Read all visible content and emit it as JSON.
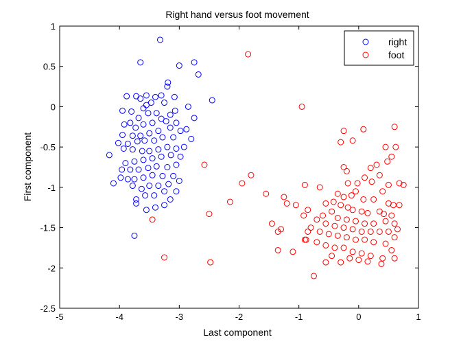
{
  "chart_data": {
    "type": "scatter",
    "title": "Right hand versus foot movement",
    "xlabel": "Last component",
    "ylabel": "First component",
    "xlim": [
      -5,
      1
    ],
    "ylim": [
      -2.5,
      1
    ],
    "xticks": [
      "-5",
      "-4",
      "-3",
      "-2",
      "-1",
      "0",
      "1"
    ],
    "yticks": [
      "-2.5",
      "-2",
      "-1.5",
      "-1",
      "-0.5",
      "0",
      "0.5",
      "1"
    ],
    "xtick_values": [
      -5,
      -4,
      -3,
      -2,
      -1,
      0,
      1
    ],
    "ytick_values": [
      -2.5,
      -2,
      -1.5,
      -1,
      -0.5,
      0,
      0.5,
      1
    ],
    "grid": false,
    "legend_position": "top-right",
    "marker": "open-circle",
    "series": [
      {
        "name": "right",
        "color": "#0000ff",
        "points": [
          [
            -3.32,
            0.83
          ],
          [
            -3.65,
            0.55
          ],
          [
            -3.0,
            0.51
          ],
          [
            -2.75,
            0.55
          ],
          [
            -2.68,
            0.4
          ],
          [
            -3.19,
            0.3
          ],
          [
            -3.2,
            0.25
          ],
          [
            -2.45,
            0.08
          ],
          [
            -3.88,
            0.13
          ],
          [
            -3.72,
            0.13
          ],
          [
            -3.55,
            0.14
          ],
          [
            -3.4,
            0.12
          ],
          [
            -3.3,
            0.14
          ],
          [
            -3.08,
            0.12
          ],
          [
            -3.25,
            0.05
          ],
          [
            -3.47,
            0.05
          ],
          [
            -3.55,
            0.02
          ],
          [
            -3.6,
            -0.02
          ],
          [
            -3.65,
            0.1
          ],
          [
            -3.8,
            -0.06
          ],
          [
            -3.95,
            -0.05
          ],
          [
            -2.85,
            0.0
          ],
          [
            -3.07,
            -0.05
          ],
          [
            -3.15,
            -0.1
          ],
          [
            -3.38,
            -0.08
          ],
          [
            -3.52,
            -0.08
          ],
          [
            -3.68,
            -0.14
          ],
          [
            -3.82,
            -0.2
          ],
          [
            -2.75,
            -0.14
          ],
          [
            -3.3,
            -0.15
          ],
          [
            -3.45,
            -0.2
          ],
          [
            -3.6,
            -0.22
          ],
          [
            -3.73,
            -0.26
          ],
          [
            -3.92,
            -0.22
          ],
          [
            -3.05,
            -0.2
          ],
          [
            -3.22,
            -0.18
          ],
          [
            -2.88,
            -0.28
          ],
          [
            -2.98,
            -0.3
          ],
          [
            -3.15,
            -0.26
          ],
          [
            -3.35,
            -0.3
          ],
          [
            -3.5,
            -0.33
          ],
          [
            -3.65,
            -0.36
          ],
          [
            -3.78,
            -0.36
          ],
          [
            -3.95,
            -0.35
          ],
          [
            -2.8,
            -0.4
          ],
          [
            -3.1,
            -0.38
          ],
          [
            -3.28,
            -0.38
          ],
          [
            -3.42,
            -0.42
          ],
          [
            -3.58,
            -0.42
          ],
          [
            -3.7,
            -0.43
          ],
          [
            -3.86,
            -0.46
          ],
          [
            -4.02,
            -0.45
          ],
          [
            -2.92,
            -0.5
          ],
          [
            -3.05,
            -0.52
          ],
          [
            -3.2,
            -0.5
          ],
          [
            -3.35,
            -0.53
          ],
          [
            -3.5,
            -0.55
          ],
          [
            -3.62,
            -0.55
          ],
          [
            -3.78,
            -0.53
          ],
          [
            -3.93,
            -0.52
          ],
          [
            -2.98,
            -0.62
          ],
          [
            -3.14,
            -0.6
          ],
          [
            -3.3,
            -0.62
          ],
          [
            -3.45,
            -0.64
          ],
          [
            -3.6,
            -0.66
          ],
          [
            -3.75,
            -0.68
          ],
          [
            -3.9,
            -0.7
          ],
          [
            -4.17,
            -0.6
          ],
          [
            -3.05,
            -0.72
          ],
          [
            -3.2,
            -0.75
          ],
          [
            -3.38,
            -0.74
          ],
          [
            -3.52,
            -0.76
          ],
          [
            -3.68,
            -0.78
          ],
          [
            -3.82,
            -0.78
          ],
          [
            -3.96,
            -0.78
          ],
          [
            -3.1,
            -0.86
          ],
          [
            -3.28,
            -0.86
          ],
          [
            -3.45,
            -0.85
          ],
          [
            -3.6,
            -0.88
          ],
          [
            -3.75,
            -0.9
          ],
          [
            -3.86,
            -0.9
          ],
          [
            -3.98,
            -0.88
          ],
          [
            -4.1,
            -0.95
          ],
          [
            -3.0,
            -0.92
          ],
          [
            -3.18,
            -0.96
          ],
          [
            -3.35,
            -0.98
          ],
          [
            -3.5,
            -0.98
          ],
          [
            -3.63,
            -1.02
          ],
          [
            -3.78,
            -0.98
          ],
          [
            -3.05,
            -1.05
          ],
          [
            -3.25,
            -1.05
          ],
          [
            -3.42,
            -1.1
          ],
          [
            -3.57,
            -1.1
          ],
          [
            -3.72,
            -1.15
          ],
          [
            -3.25,
            -1.22
          ],
          [
            -3.4,
            -1.25
          ],
          [
            -3.55,
            -1.28
          ],
          [
            -3.72,
            -1.2
          ],
          [
            -3.75,
            -1.6
          ],
          [
            -3.15,
            -1.15
          ]
        ]
      },
      {
        "name": "foot",
        "color": "#ff0000",
        "points": [
          [
            -1.85,
            0.65
          ],
          [
            -0.95,
            0.0
          ],
          [
            0.6,
            -0.25
          ],
          [
            0.08,
            -0.28
          ],
          [
            -0.25,
            -0.3
          ],
          [
            -0.1,
            -0.42
          ],
          [
            -0.3,
            -0.44
          ],
          [
            0.45,
            -0.5
          ],
          [
            0.62,
            -0.5
          ],
          [
            0.55,
            -0.62
          ],
          [
            0.48,
            -0.68
          ],
          [
            0.3,
            -0.72
          ],
          [
            0.2,
            -0.76
          ],
          [
            0.35,
            -0.85
          ],
          [
            0.1,
            -0.88
          ],
          [
            -0.02,
            -0.95
          ],
          [
            -0.2,
            -0.8
          ],
          [
            -0.25,
            -0.75
          ],
          [
            -0.18,
            -0.95
          ],
          [
            0.22,
            -0.93
          ],
          [
            0.68,
            -0.95
          ],
          [
            0.75,
            -0.97
          ],
          [
            0.5,
            -0.97
          ],
          [
            0.4,
            -1.05
          ],
          [
            -0.05,
            -1.05
          ],
          [
            -0.12,
            -1.1
          ],
          [
            -0.25,
            -1.12
          ],
          [
            -0.35,
            -1.08
          ],
          [
            0.08,
            -1.15
          ],
          [
            0.25,
            -1.15
          ],
          [
            0.5,
            -1.2
          ],
          [
            0.58,
            -1.22
          ],
          [
            0.68,
            -1.22
          ],
          [
            -0.42,
            -1.18
          ],
          [
            -0.55,
            -1.2
          ],
          [
            -0.3,
            -1.22
          ],
          [
            -0.18,
            -1.25
          ],
          [
            -0.1,
            -1.28
          ],
          [
            0.05,
            -1.3
          ],
          [
            0.15,
            -1.32
          ],
          [
            0.35,
            -1.3
          ],
          [
            0.42,
            -1.33
          ],
          [
            0.55,
            -1.35
          ],
          [
            -0.45,
            -1.3
          ],
          [
            -0.6,
            -1.35
          ],
          [
            -0.35,
            -1.38
          ],
          [
            -0.2,
            -1.4
          ],
          [
            -0.05,
            -1.42
          ],
          [
            0.1,
            -1.45
          ],
          [
            0.25,
            -1.45
          ],
          [
            0.45,
            -1.42
          ],
          [
            0.6,
            -1.45
          ],
          [
            0.65,
            -1.52
          ],
          [
            -0.55,
            -1.45
          ],
          [
            -0.7,
            -1.4
          ],
          [
            -0.4,
            -1.48
          ],
          [
            -0.25,
            -1.5
          ],
          [
            -0.1,
            -1.52
          ],
          [
            0.05,
            -1.55
          ],
          [
            0.2,
            -1.55
          ],
          [
            0.35,
            -1.55
          ],
          [
            0.5,
            -1.55
          ],
          [
            0.6,
            -1.62
          ],
          [
            -0.65,
            -1.55
          ],
          [
            -0.8,
            -1.5
          ],
          [
            -0.5,
            -1.58
          ],
          [
            -0.35,
            -1.6
          ],
          [
            -0.2,
            -1.62
          ],
          [
            -0.05,
            -1.65
          ],
          [
            0.1,
            -1.65
          ],
          [
            0.25,
            -1.68
          ],
          [
            0.45,
            -1.7
          ],
          [
            0.55,
            -1.78
          ],
          [
            -0.9,
            -1.65
          ],
          [
            -0.7,
            -1.68
          ],
          [
            -0.55,
            -1.72
          ],
          [
            -0.4,
            -1.75
          ],
          [
            -0.25,
            -1.75
          ],
          [
            -0.1,
            -1.8
          ],
          [
            0.05,
            -1.82
          ],
          [
            0.2,
            -1.85
          ],
          [
            0.4,
            -1.88
          ],
          [
            0.6,
            -1.88
          ],
          [
            -0.45,
            -1.85
          ],
          [
            -0.15,
            -1.88
          ],
          [
            0.0,
            -1.9
          ],
          [
            0.15,
            -1.92
          ],
          [
            0.38,
            -1.95
          ],
          [
            -0.55,
            -1.93
          ],
          [
            -0.3,
            -1.93
          ],
          [
            -0.75,
            -2.1
          ],
          [
            -1.35,
            -1.78
          ],
          [
            -1.1,
            -1.8
          ],
          [
            -1.35,
            -1.55
          ],
          [
            -1.3,
            -1.52
          ],
          [
            -1.45,
            -1.45
          ],
          [
            -1.2,
            -1.2
          ],
          [
            -1.05,
            -1.22
          ],
          [
            -1.25,
            -1.12
          ],
          [
            -1.55,
            -1.08
          ],
          [
            -1.95,
            -0.95
          ],
          [
            -1.8,
            -0.85
          ],
          [
            -2.15,
            -1.18
          ],
          [
            -0.85,
            -1.28
          ],
          [
            -0.92,
            -1.35
          ],
          [
            -0.85,
            -1.55
          ],
          [
            -0.88,
            -1.65
          ],
          [
            -0.65,
            -1.0
          ],
          [
            -0.9,
            -0.97
          ],
          [
            -2.58,
            -0.72
          ],
          [
            -2.5,
            -1.33
          ],
          [
            -2.48,
            -1.93
          ],
          [
            -3.25,
            -1.87
          ],
          [
            -3.45,
            -1.4
          ]
        ]
      }
    ]
  }
}
